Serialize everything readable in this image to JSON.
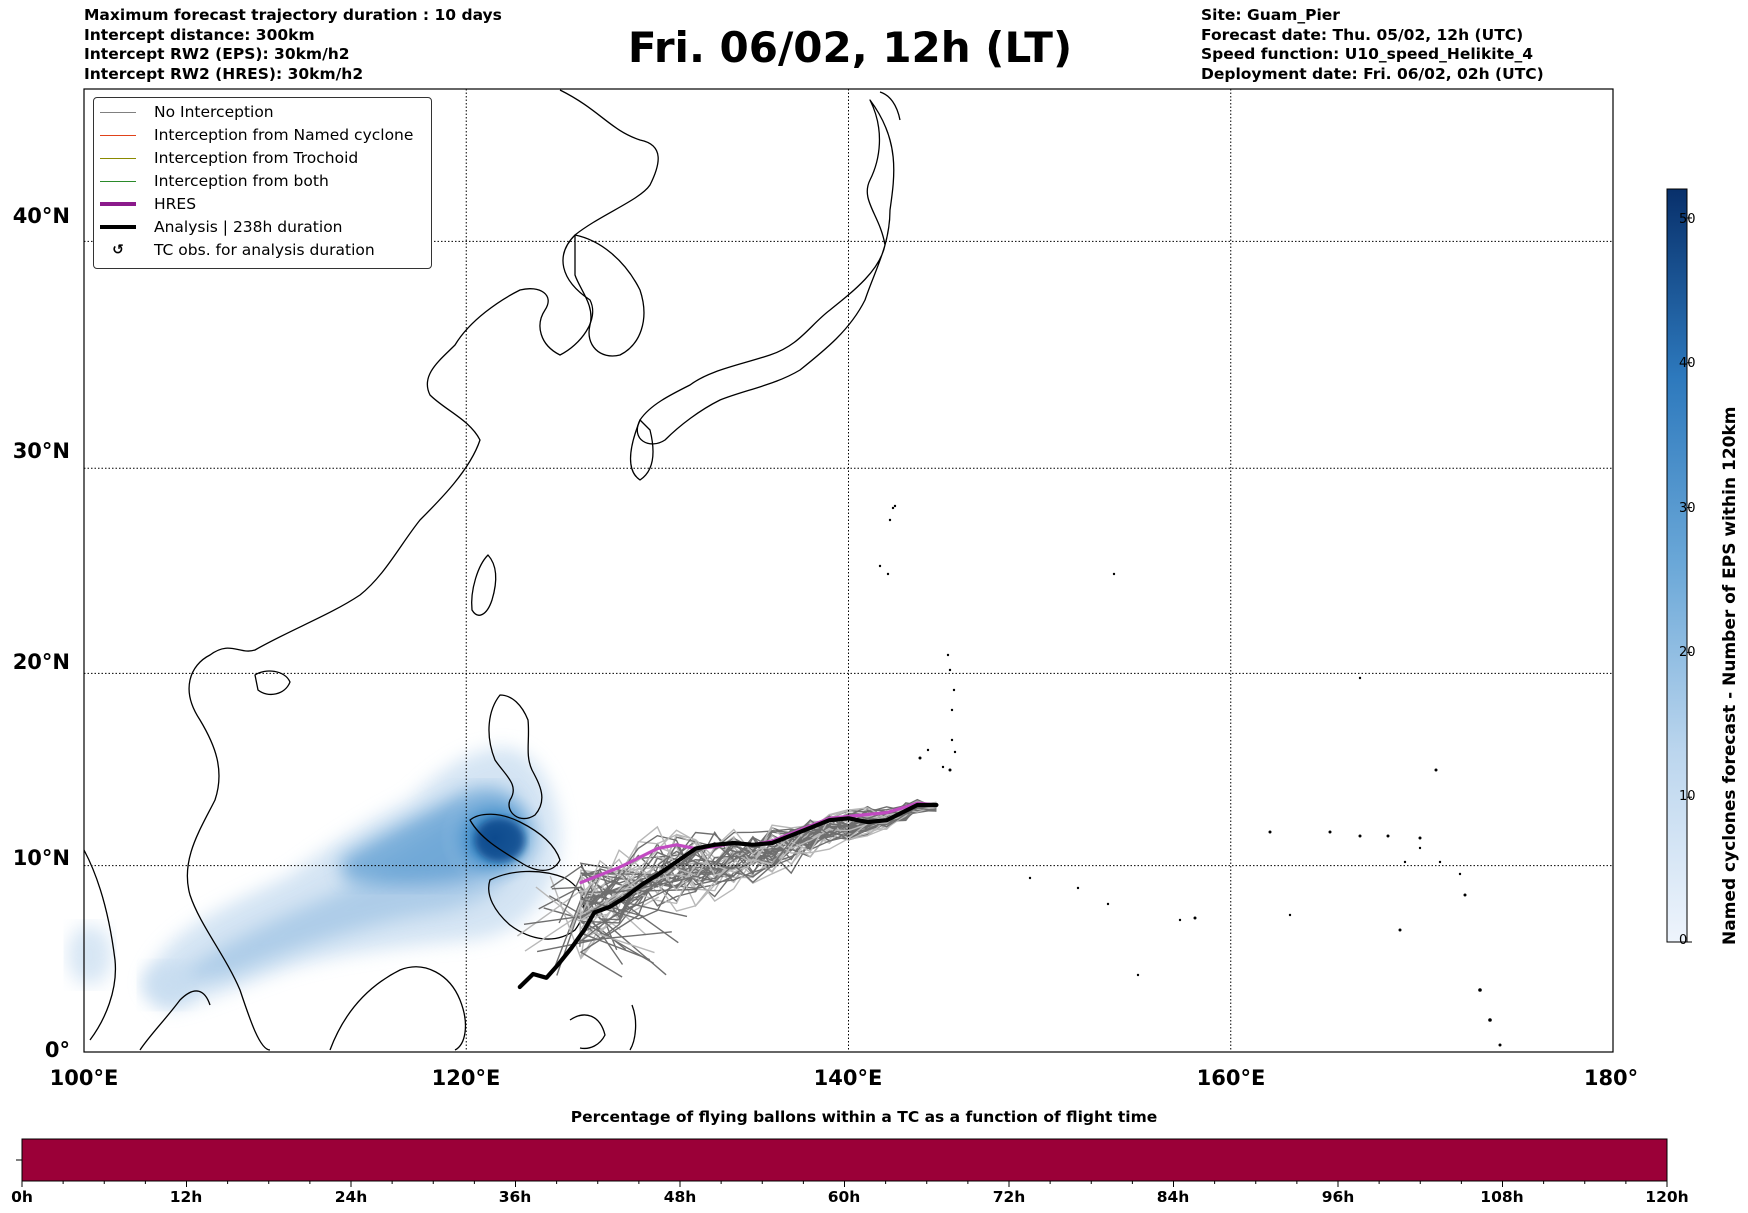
{
  "header": {
    "left": [
      "Maximum forecast trajectory duration : 10 days",
      "Intercept distance: 300km",
      "Intercept RW2 (EPS):  30km/h2",
      "Intercept RW2 (HRES): 30km/h2"
    ],
    "title": "Fri. 06/02, 12h (LT)",
    "right": [
      "Site: Guam_Pier",
      "Forecast date: Thu. 05/02, 12h (UTC)",
      "Speed function: U10_speed_Helikite_4",
      "Deployment date: Fri. 06/02, 02h (UTC)"
    ]
  },
  "legend": {
    "items": [
      {
        "label": "No Interception",
        "color": "#808080"
      },
      {
        "label": "Interception from Named cyclone",
        "color": "#e0421a"
      },
      {
        "label": "Interception from Trochoid",
        "color": "#8a8a00"
      },
      {
        "label": "Interception from both",
        "color": "#2a8a2a"
      },
      {
        "label": "HRES",
        "color": "#8b1a8b"
      },
      {
        "label": "Analysis | 238h duration",
        "color": "#000000"
      },
      {
        "label": "TC obs. for analysis duration",
        "symbol": "↺"
      }
    ]
  },
  "map": {
    "lat_ticks": [
      "0°",
      "10°N",
      "20°N",
      "30°N",
      "40°N"
    ],
    "lon_ticks": [
      "100°E",
      "120°E",
      "140°E",
      "160°E",
      "180°"
    ],
    "lon_range": [
      100,
      180
    ],
    "lat_range": [
      0,
      46
    ]
  },
  "colorbar": {
    "title": "Named cyclones forecast - Number of EPS within 120km",
    "ticks": [
      "0",
      "10",
      "20",
      "30",
      "40",
      "50"
    ],
    "range": [
      0,
      52
    ]
  },
  "bottom_bar": {
    "title": "Percentage of flying ballons within a TC as a function of flight time",
    "ticks": [
      "0h",
      "12h",
      "24h",
      "36h",
      "48h",
      "60h",
      "72h",
      "84h",
      "96h",
      "108h",
      "120h"
    ],
    "color": "#9b0038"
  },
  "trajectories": {
    "analysis": [
      [
        122.8,
        3.5
      ],
      [
        123.5,
        4.2
      ],
      [
        124.2,
        4.0
      ],
      [
        124.8,
        4.7
      ],
      [
        125.5,
        5.6
      ],
      [
        126.2,
        6.6
      ],
      [
        126.7,
        7.5
      ],
      [
        127.5,
        7.8
      ],
      [
        128.3,
        8.3
      ],
      [
        129.2,
        9.0
      ],
      [
        130.0,
        9.5
      ],
      [
        131.0,
        10.2
      ],
      [
        132.0,
        10.9
      ],
      [
        133.0,
        11.1
      ],
      [
        134.0,
        11.2
      ],
      [
        135.0,
        11.1
      ],
      [
        136.0,
        11.2
      ],
      [
        137.0,
        11.6
      ],
      [
        138.0,
        12.0
      ],
      [
        139.0,
        12.4
      ],
      [
        140.0,
        12.5
      ],
      [
        141.0,
        12.3
      ],
      [
        142.0,
        12.4
      ],
      [
        143.0,
        12.9
      ],
      [
        143.6,
        13.2
      ],
      [
        144.6,
        13.2
      ]
    ],
    "hres": [
      [
        126.0,
        9.1
      ],
      [
        127.0,
        9.5
      ],
      [
        128.0,
        9.9
      ],
      [
        129.0,
        10.4
      ],
      [
        130.0,
        10.9
      ],
      [
        131.0,
        11.1
      ],
      [
        132.0,
        10.9
      ],
      [
        133.0,
        11.0
      ],
      [
        134.0,
        11.2
      ],
      [
        135.0,
        11.1
      ],
      [
        136.0,
        11.3
      ],
      [
        137.0,
        11.7
      ],
      [
        138.0,
        12.1
      ],
      [
        139.0,
        12.5
      ],
      [
        140.0,
        12.6
      ],
      [
        141.0,
        12.7
      ],
      [
        142.0,
        12.8
      ],
      [
        143.0,
        13.1
      ],
      [
        143.6,
        13.3
      ],
      [
        144.6,
        13.2
      ]
    ]
  }
}
